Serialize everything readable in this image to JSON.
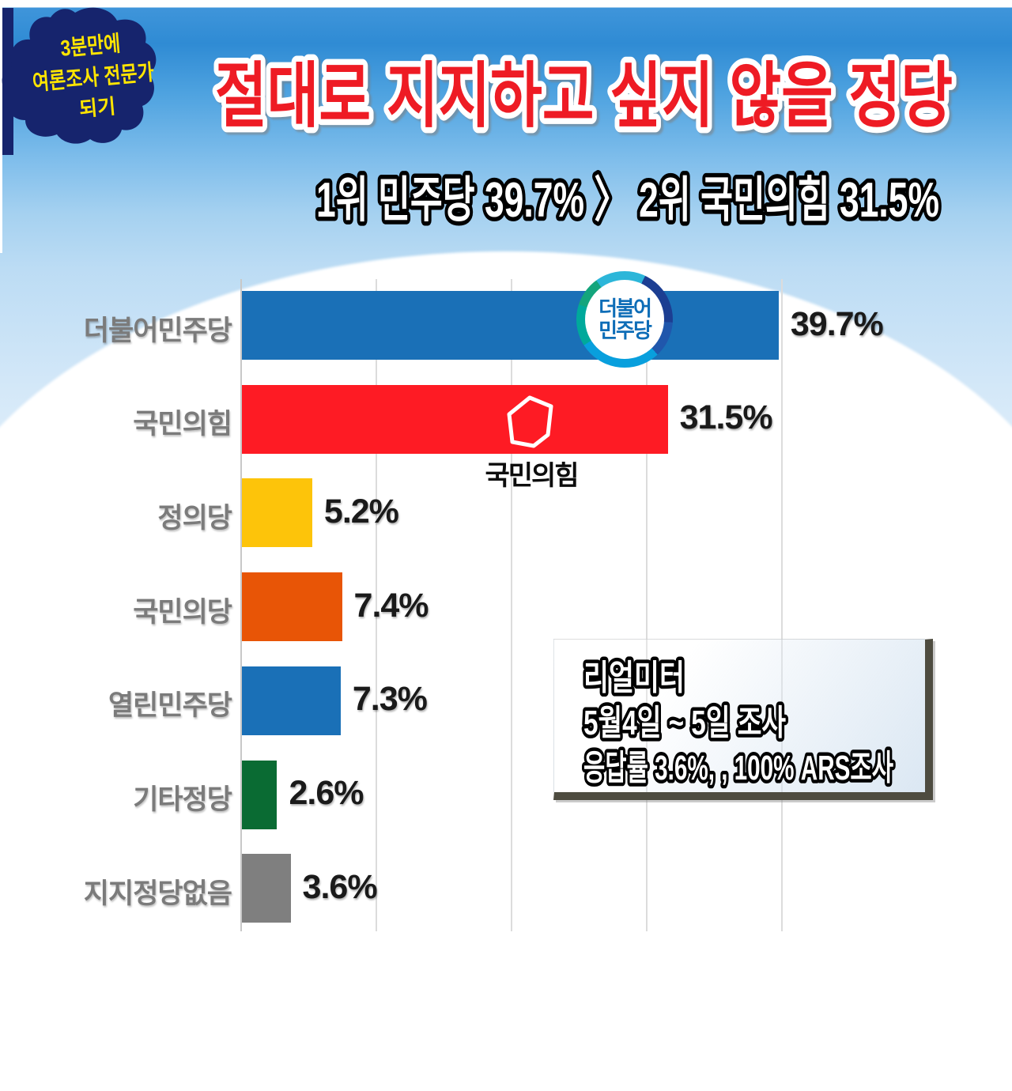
{
  "badge": {
    "lines": [
      "3분만에",
      "여론조사 전문가",
      "되기"
    ]
  },
  "title": {
    "text": "절대로 지지하고 싶지 않을 정당"
  },
  "subtitle": {
    "text": "1위 민주당 39.7% 〉 2위 국민의힘 31.5%"
  },
  "chart_data": {
    "type": "bar",
    "orientation": "horizontal",
    "title": "절대로 지지하고 싶지 않을 정당",
    "subtitle": "1위 민주당 39.7% 〉 2위 국민의힘 31.5%",
    "categories": [
      "더불어민주당",
      "국민의힘",
      "정의당",
      "국민의당",
      "열린민주당",
      "기타정당",
      "지지정당없음"
    ],
    "values": [
      39.7,
      31.5,
      5.2,
      7.4,
      7.3,
      2.6,
      3.6
    ],
    "value_labels": [
      "39.7%",
      "31.5%",
      "5.2%",
      "7.4%",
      "7.3%",
      "2.6%",
      "3.6%"
    ],
    "bar_colors": [
      "#1a70b7",
      "#fe1b24",
      "#fdc40a",
      "#e85506",
      "#1a70b7",
      "#0a6b33",
      "#7f7f7f"
    ],
    "xlabel": "",
    "ylabel": "",
    "xlim": [
      0,
      45
    ],
    "grid": true,
    "gridline_interval_pct": 10,
    "legend": false,
    "source": "리얼미터 5월4일 ~ 5일 조사, 응답률 3.6%, 100% ARS조사"
  },
  "logos": {
    "minjoo": {
      "lines": [
        "더불어",
        "민주당"
      ]
    },
    "ppp": {
      "caption": "국민의힘"
    }
  },
  "source_box": {
    "lines": [
      "리얼미터",
      "5월4일 ~ 5일 조사",
      "응답률 3.6%, , 100% ARS조사"
    ]
  },
  "colors": {
    "title_red": "#ee1b24",
    "badge_navy": "#16246d",
    "badge_yellow": "#ffe500",
    "label_gray": "#7b7b7b",
    "grid_gray": "#dcdcdc",
    "box_edge": "#4e4c40",
    "minjoo_text_blue": "#0e6db7"
  }
}
